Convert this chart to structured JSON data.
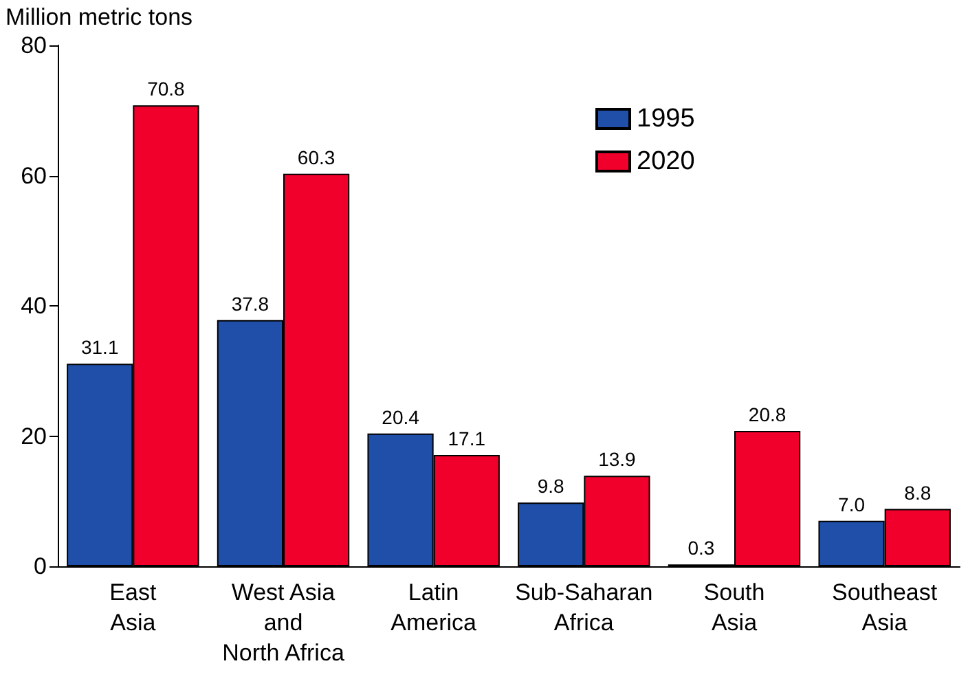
{
  "chart_data": {
    "type": "bar",
    "ylabel": "Million metric tons",
    "categories": [
      "East\nAsia",
      "West Asia\nand\nNorth Africa",
      "Latin\nAmerica",
      "Sub-Saharan\nAfrica",
      "South\nAsia",
      "Southeast\nAsia"
    ],
    "series": [
      {
        "name": "1995",
        "color": "#1f4fa8",
        "values": [
          31.1,
          37.8,
          20.4,
          9.8,
          0.3,
          7.0
        ],
        "value_labels": [
          "31.1",
          "37.8",
          "20.4",
          "9.8",
          "0.3",
          "7.0"
        ]
      },
      {
        "name": "2020",
        "color": "#f0002a",
        "values": [
          70.8,
          60.3,
          17.1,
          13.9,
          20.8,
          8.8
        ],
        "value_labels": [
          "70.8",
          "60.3",
          "17.1",
          "13.9",
          "20.8",
          "8.8"
        ]
      }
    ],
    "ylim": [
      0,
      80
    ],
    "yticks": [
      0,
      20,
      40,
      60,
      80
    ],
    "grid": false,
    "legend": "top"
  }
}
